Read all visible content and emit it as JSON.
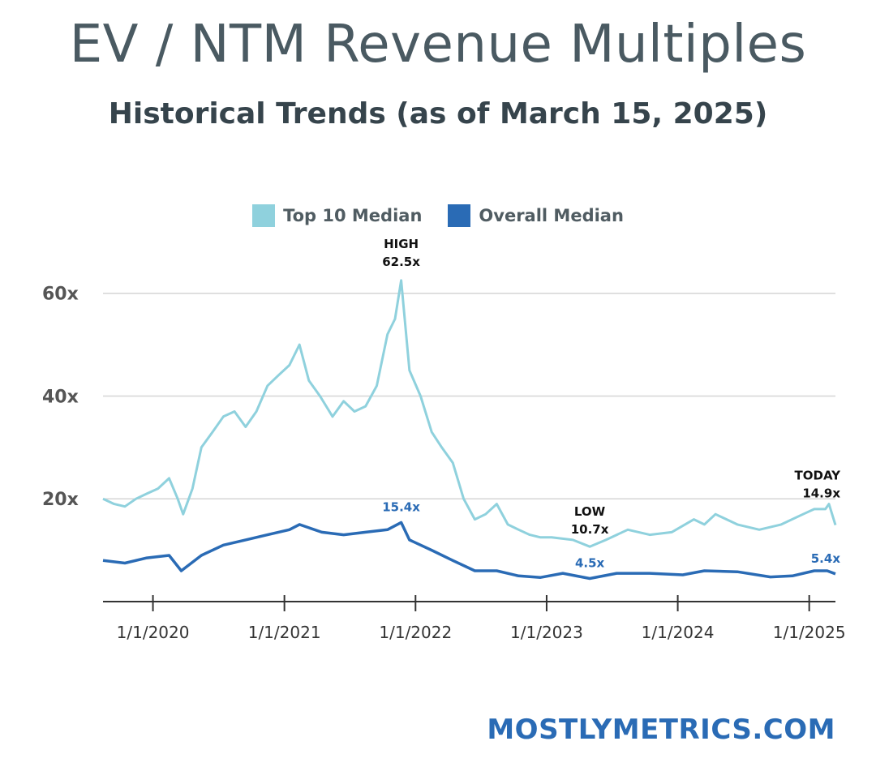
{
  "header": {
    "title": "EV / NTM Revenue Multiples",
    "subtitle": "Historical Trends (as of March 15, 2025)"
  },
  "brand": {
    "text": "MOSTLYMETRICS.COM"
  },
  "colors": {
    "top10": "#8fd1dd",
    "overall": "#2a6bb5",
    "grid": "#d5d5d5",
    "axis": "#333333",
    "title": "#4a5a62",
    "subtitle": "#36444c",
    "brand": "#2a6bb5"
  },
  "chart_data": {
    "type": "line",
    "ylim": [
      0,
      65
    ],
    "yticks": [
      {
        "value": 20,
        "label": "20x"
      },
      {
        "value": 40,
        "label": "40x"
      },
      {
        "value": 60,
        "label": "60x"
      }
    ],
    "xlim": [
      "2019-08-15",
      "2025-03-15"
    ],
    "xticks": [
      {
        "date": "2020-01-01",
        "label": "1/1/2020"
      },
      {
        "date": "2021-01-01",
        "label": "1/1/2021"
      },
      {
        "date": "2022-01-01",
        "label": "1/1/2022"
      },
      {
        "date": "2023-01-01",
        "label": "1/1/2023"
      },
      {
        "date": "2024-01-01",
        "label": "1/1/2024"
      },
      {
        "date": "2025-01-01",
        "label": "1/1/2025"
      }
    ],
    "grid": true,
    "legend": "top-center",
    "series": [
      {
        "name": "Top 10 Median",
        "color": "#8fd1dd",
        "points": [
          [
            "2019-08-15",
            20
          ],
          [
            "2019-09-15",
            19
          ],
          [
            "2019-10-15",
            18.5
          ],
          [
            "2019-11-15",
            20
          ],
          [
            "2019-12-15",
            21
          ],
          [
            "2020-01-15",
            22
          ],
          [
            "2020-02-15",
            24
          ],
          [
            "2020-03-10",
            20
          ],
          [
            "2020-03-25",
            17
          ],
          [
            "2020-04-20",
            22
          ],
          [
            "2020-05-15",
            30
          ],
          [
            "2020-06-15",
            33
          ],
          [
            "2020-07-15",
            36
          ],
          [
            "2020-08-15",
            37
          ],
          [
            "2020-09-15",
            34
          ],
          [
            "2020-10-15",
            37
          ],
          [
            "2020-11-15",
            42
          ],
          [
            "2020-12-15",
            44
          ],
          [
            "2021-01-15",
            46
          ],
          [
            "2021-02-12",
            50
          ],
          [
            "2021-03-10",
            43
          ],
          [
            "2021-04-10",
            40
          ],
          [
            "2021-05-15",
            36
          ],
          [
            "2021-06-15",
            39
          ],
          [
            "2021-07-15",
            37
          ],
          [
            "2021-08-15",
            38
          ],
          [
            "2021-09-15",
            42
          ],
          [
            "2021-10-15",
            52
          ],
          [
            "2021-11-05",
            55
          ],
          [
            "2021-11-22",
            62.5
          ],
          [
            "2021-12-15",
            45
          ],
          [
            "2022-01-15",
            40
          ],
          [
            "2022-02-15",
            33
          ],
          [
            "2022-03-15",
            30
          ],
          [
            "2022-04-15",
            27
          ],
          [
            "2022-05-15",
            20
          ],
          [
            "2022-06-15",
            16
          ],
          [
            "2022-07-15",
            17
          ],
          [
            "2022-08-15",
            19
          ],
          [
            "2022-09-15",
            15
          ],
          [
            "2022-10-15",
            14
          ],
          [
            "2022-11-15",
            13
          ],
          [
            "2022-12-15",
            12.5
          ],
          [
            "2023-01-15",
            12.5
          ],
          [
            "2023-03-15",
            12
          ],
          [
            "2023-05-01",
            10.7
          ],
          [
            "2023-06-15",
            12
          ],
          [
            "2023-08-15",
            14
          ],
          [
            "2023-10-15",
            13
          ],
          [
            "2023-12-15",
            13.5
          ],
          [
            "2024-02-15",
            16
          ],
          [
            "2024-03-15",
            15
          ],
          [
            "2024-04-15",
            17
          ],
          [
            "2024-06-15",
            15
          ],
          [
            "2024-08-15",
            14
          ],
          [
            "2024-10-15",
            15
          ],
          [
            "2024-12-15",
            17
          ],
          [
            "2025-01-15",
            18
          ],
          [
            "2025-02-15",
            18
          ],
          [
            "2025-02-25",
            19
          ],
          [
            "2025-03-15",
            14.9
          ]
        ]
      },
      {
        "name": "Overall Median",
        "color": "#2a6bb5",
        "points": [
          [
            "2019-08-15",
            8
          ],
          [
            "2019-10-15",
            7.5
          ],
          [
            "2019-12-15",
            8.5
          ],
          [
            "2020-02-15",
            9
          ],
          [
            "2020-03-20",
            6
          ],
          [
            "2020-05-15",
            9
          ],
          [
            "2020-07-15",
            11
          ],
          [
            "2020-09-15",
            12
          ],
          [
            "2020-11-15",
            13
          ],
          [
            "2021-01-15",
            14
          ],
          [
            "2021-02-12",
            15
          ],
          [
            "2021-04-15",
            13.5
          ],
          [
            "2021-06-15",
            13
          ],
          [
            "2021-08-15",
            13.5
          ],
          [
            "2021-10-15",
            14
          ],
          [
            "2021-11-22",
            15.4
          ],
          [
            "2021-12-15",
            12
          ],
          [
            "2022-02-15",
            10
          ],
          [
            "2022-04-15",
            8
          ],
          [
            "2022-06-15",
            6
          ],
          [
            "2022-08-15",
            6
          ],
          [
            "2022-10-15",
            5
          ],
          [
            "2022-12-15",
            4.7
          ],
          [
            "2023-02-15",
            5.5
          ],
          [
            "2023-05-01",
            4.5
          ],
          [
            "2023-07-15",
            5.5
          ],
          [
            "2023-10-15",
            5.5
          ],
          [
            "2024-01-15",
            5.2
          ],
          [
            "2024-03-15",
            6
          ],
          [
            "2024-06-15",
            5.8
          ],
          [
            "2024-09-15",
            4.8
          ],
          [
            "2024-11-15",
            5
          ],
          [
            "2025-01-15",
            6
          ],
          [
            "2025-02-20",
            6
          ],
          [
            "2025-03-15",
            5.4
          ]
        ]
      }
    ],
    "annotations": [
      {
        "lines": [
          "HIGH",
          "62.5x"
        ],
        "date": "2021-11-22",
        "value": 62.5,
        "series": 0
      },
      {
        "lines": [
          "15.4x"
        ],
        "date": "2021-11-22",
        "value": 15.4,
        "series": 1
      },
      {
        "lines": [
          "LOW",
          "10.7x"
        ],
        "date": "2023-05-01",
        "value": 10.7,
        "series": 0
      },
      {
        "lines": [
          "4.5x"
        ],
        "date": "2023-05-01",
        "value": 4.5,
        "series": 1
      },
      {
        "lines": [
          "TODAY",
          "14.9x"
        ],
        "date": "2025-03-15",
        "value": 14.9,
        "series": 0
      },
      {
        "lines": [
          "5.4x"
        ],
        "date": "2025-03-15",
        "value": 5.4,
        "series": 1
      }
    ]
  }
}
